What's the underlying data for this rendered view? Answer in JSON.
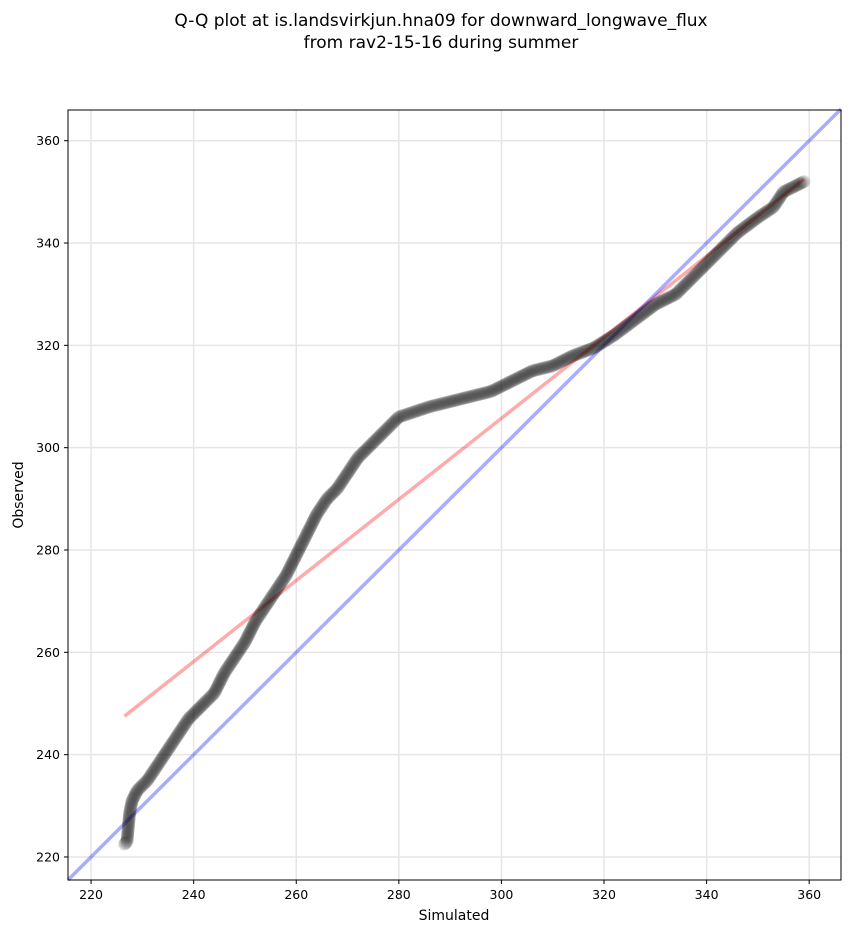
{
  "chart_data": {
    "type": "scatter",
    "title_lines": [
      "Q-Q plot at is.landsvirkjun.hna09 for downward_longwave_flux",
      "from rav2-15-16 during summer"
    ],
    "xlabel": "Simulated",
    "ylabel": "Observed",
    "xlim": [
      215.5,
      366.2
    ],
    "ylim": [
      215.5,
      366
    ],
    "xticks": [
      220,
      240,
      260,
      280,
      300,
      320,
      340,
      360
    ],
    "yticks": [
      220,
      240,
      260,
      280,
      300,
      320,
      340,
      360
    ],
    "grid": true,
    "series": [
      {
        "name": "quantiles",
        "color": "#000000",
        "points": [
          [
            226.5,
            222.5
          ],
          [
            227,
            223
          ],
          [
            227.5,
            228.5
          ],
          [
            228,
            231
          ],
          [
            229,
            233
          ],
          [
            231,
            235
          ],
          [
            233,
            238
          ],
          [
            235,
            241
          ],
          [
            237,
            244
          ],
          [
            239,
            247
          ],
          [
            242,
            250
          ],
          [
            244,
            252
          ],
          [
            246,
            256
          ],
          [
            248,
            259
          ],
          [
            250,
            262
          ],
          [
            252,
            266
          ],
          [
            254,
            269
          ],
          [
            256,
            272
          ],
          [
            258,
            275
          ],
          [
            260,
            279
          ],
          [
            262,
            283
          ],
          [
            264,
            287
          ],
          [
            266,
            290
          ],
          [
            268,
            292
          ],
          [
            270,
            295
          ],
          [
            272,
            298
          ],
          [
            274,
            300
          ],
          [
            276,
            302
          ],
          [
            278,
            304
          ],
          [
            280,
            306
          ],
          [
            283,
            307
          ],
          [
            286,
            308
          ],
          [
            290,
            309
          ],
          [
            294,
            310
          ],
          [
            298,
            311
          ],
          [
            302,
            313
          ],
          [
            306,
            315
          ],
          [
            310,
            316
          ],
          [
            314,
            318
          ],
          [
            318,
            319.5
          ],
          [
            322,
            322
          ],
          [
            326,
            325
          ],
          [
            330,
            328
          ],
          [
            334,
            330
          ],
          [
            338,
            334
          ],
          [
            342,
            338
          ],
          [
            346,
            342
          ],
          [
            350,
            345
          ],
          [
            353,
            347
          ],
          [
            355,
            350
          ],
          [
            359,
            352
          ]
        ]
      },
      {
        "name": "fit line",
        "type": "line",
        "color": "#ff0000",
        "points": [
          [
            226.5,
            247.5
          ],
          [
            359,
            352.5
          ]
        ]
      },
      {
        "name": "1:1 line",
        "type": "line",
        "color": "#0000ff",
        "points": [
          [
            215.5,
            215.5
          ],
          [
            366.2,
            366.2
          ]
        ]
      }
    ]
  }
}
